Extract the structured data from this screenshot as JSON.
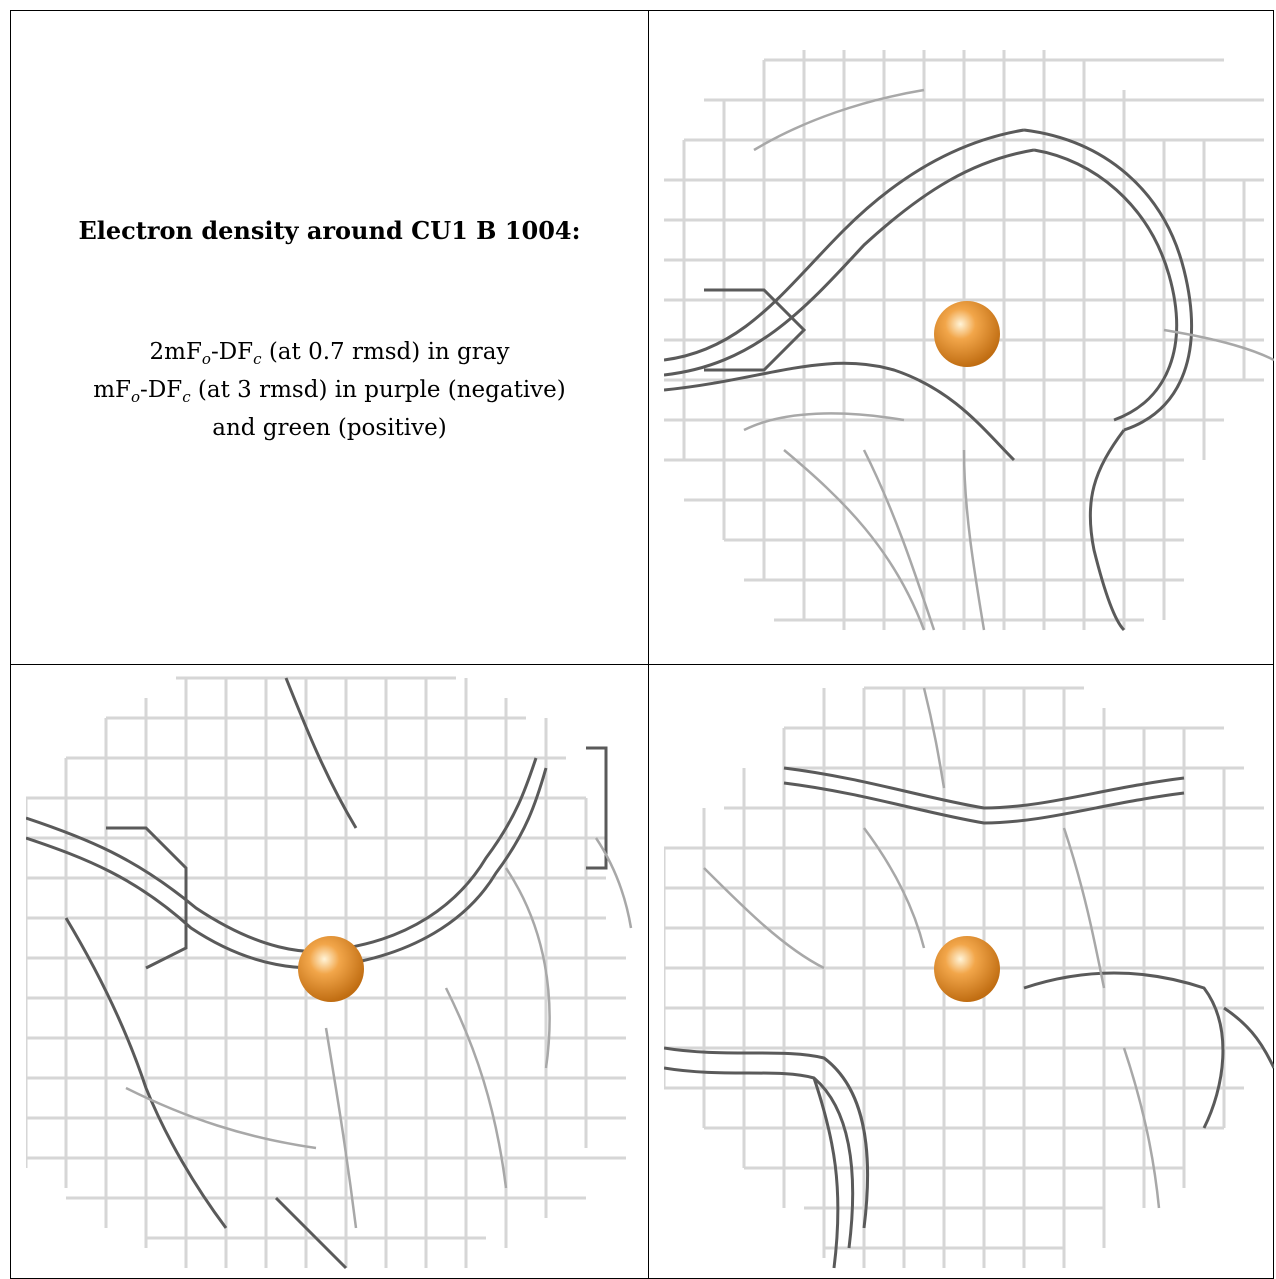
{
  "caption": {
    "title": "Electron density around CU1 B 1004:",
    "line1_prefix": "2mF",
    "line1_sub1": "o",
    "line1_mid": "-DF",
    "line1_sub2": "c",
    "line1_suffix": " (at 0.7 rmsd) in gray",
    "line2_prefix": "mF",
    "line2_sub1": "o",
    "line2_mid": "-DF",
    "line2_sub2": "c",
    "line2_suffix": " (at 3 rmsd) in purple (negative)",
    "line3": "and green (positive)"
  },
  "colors": {
    "mesh_light": "#d6d6d6",
    "mesh_mid": "#a8a8a8",
    "mesh_dark": "#5a5a5a",
    "atom": "#e8902c"
  },
  "panels": [
    {
      "name": "view-1"
    },
    {
      "name": "view-2"
    },
    {
      "name": "view-3"
    }
  ]
}
